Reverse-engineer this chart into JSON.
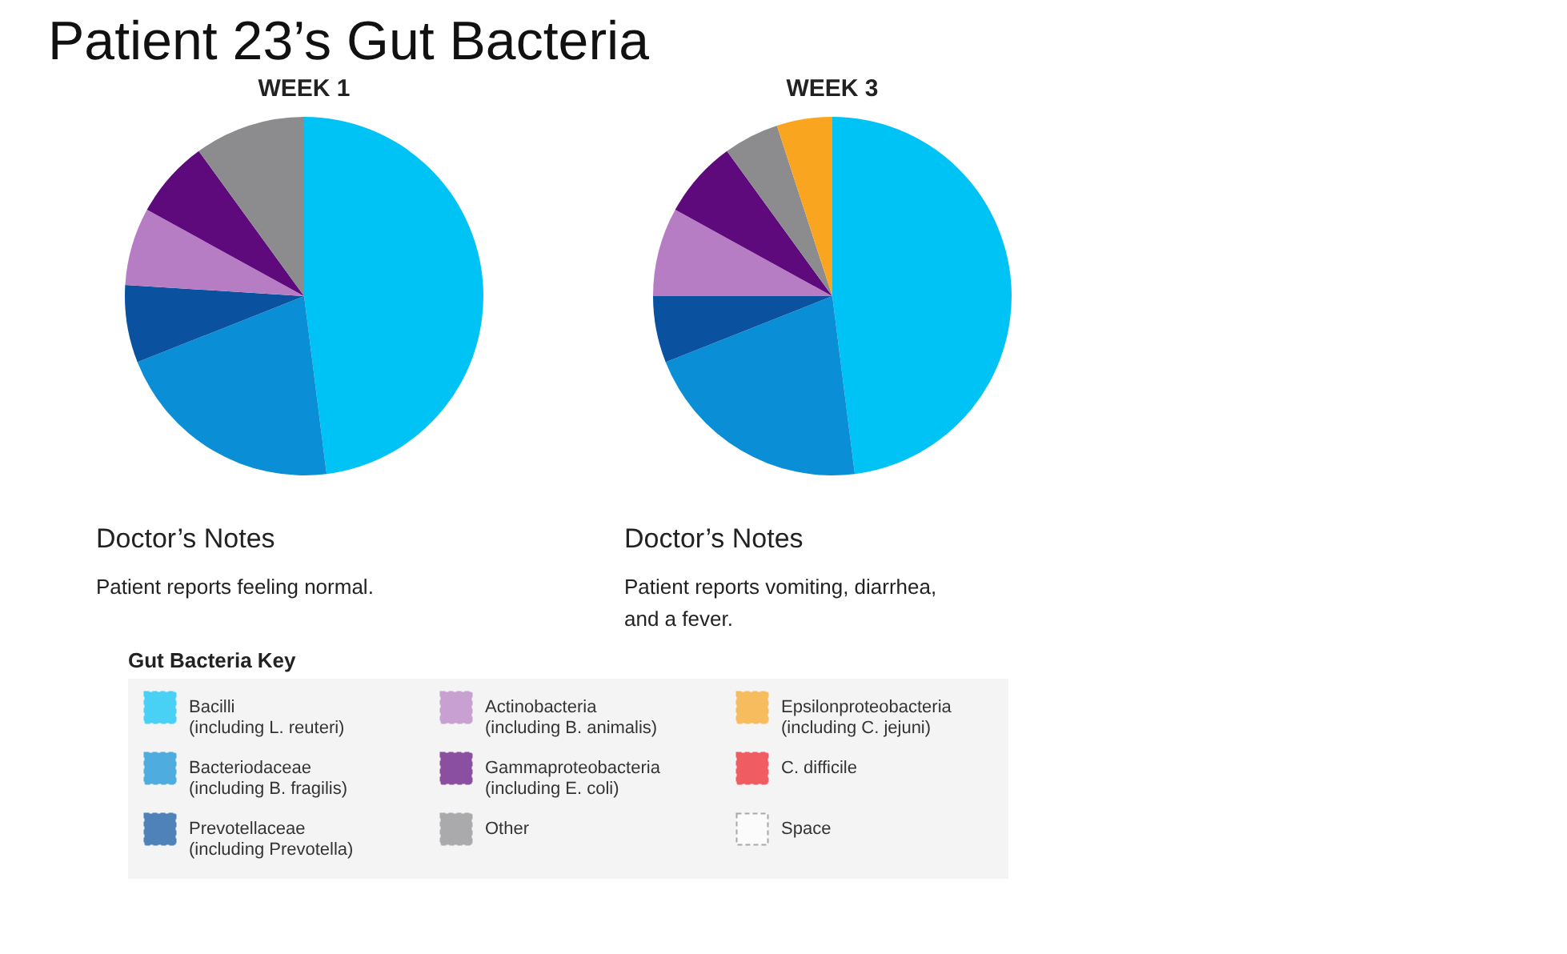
{
  "chart_data": {
    "type": "pie",
    "title": "Patient 23’s Gut Bacteria",
    "categories": [
      "Bacilli (including L. reuteri)",
      "Bacteriodaceae (including B. fragilis)",
      "Prevotellaceae (including Prevotella)",
      "Actinobacteria (including B. animalis)",
      "Gammaproteobacteria (including E. coli)",
      "Other",
      "Epsilonproteobacteria (including C. jejuni)",
      "C. difficile",
      "Space"
    ],
    "colors": [
      "#00c3f5",
      "#0a8fd6",
      "#0a52a0",
      "#b77dc4",
      "#5e0a7d",
      "#8c8c8e",
      "#f9a51f",
      "#ee1c24",
      "#ffffff"
    ],
    "series": [
      {
        "name": "WEEK 1",
        "values": [
          48,
          21,
          7,
          7,
          7,
          10,
          0,
          0,
          0
        ]
      },
      {
        "name": "WEEK 3",
        "values": [
          48,
          21,
          6,
          8,
          7,
          5,
          5,
          0,
          0
        ]
      }
    ],
    "annotations": [
      "Doctor’s Notes",
      "Patient reports feeling normal.",
      "Doctor’s Notes",
      "Patient reports vomiting, diarrhea, and a fever."
    ],
    "legend": "bottom",
    "legend_title": "Gut Bacteria Key"
  }
}
